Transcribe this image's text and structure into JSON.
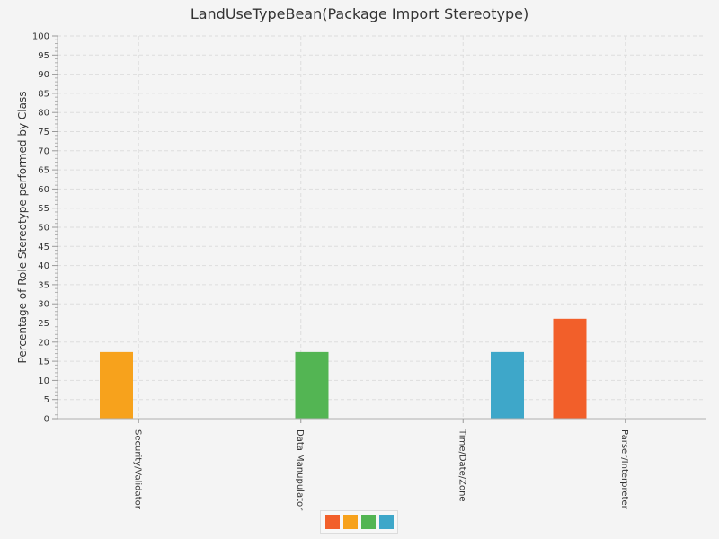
{
  "chart_data": {
    "type": "bar",
    "title": "LandUseTypeBean(Package Import Stereotype)",
    "ylabel": "Percentage of Role Stereotype performed by Class",
    "xlabel": "",
    "ylim": [
      0,
      100
    ],
    "y_tick_step": 5,
    "grid": true,
    "categories": [
      "Security/Validator",
      "Data Manupulator",
      "Time/Date/Zone",
      "Parser/Interpreter"
    ],
    "series": [
      {
        "color": "#f25f2a",
        "values": [
          0,
          0,
          0,
          26.1
        ]
      },
      {
        "color": "#f7a21c",
        "values": [
          17.4,
          0,
          0,
          0
        ]
      },
      {
        "color": "#53b553",
        "values": [
          0,
          17.4,
          0,
          0
        ]
      },
      {
        "color": "#3ea7c9",
        "values": [
          0,
          0,
          17.4,
          0
        ]
      }
    ],
    "legend_placement": "bottom"
  }
}
